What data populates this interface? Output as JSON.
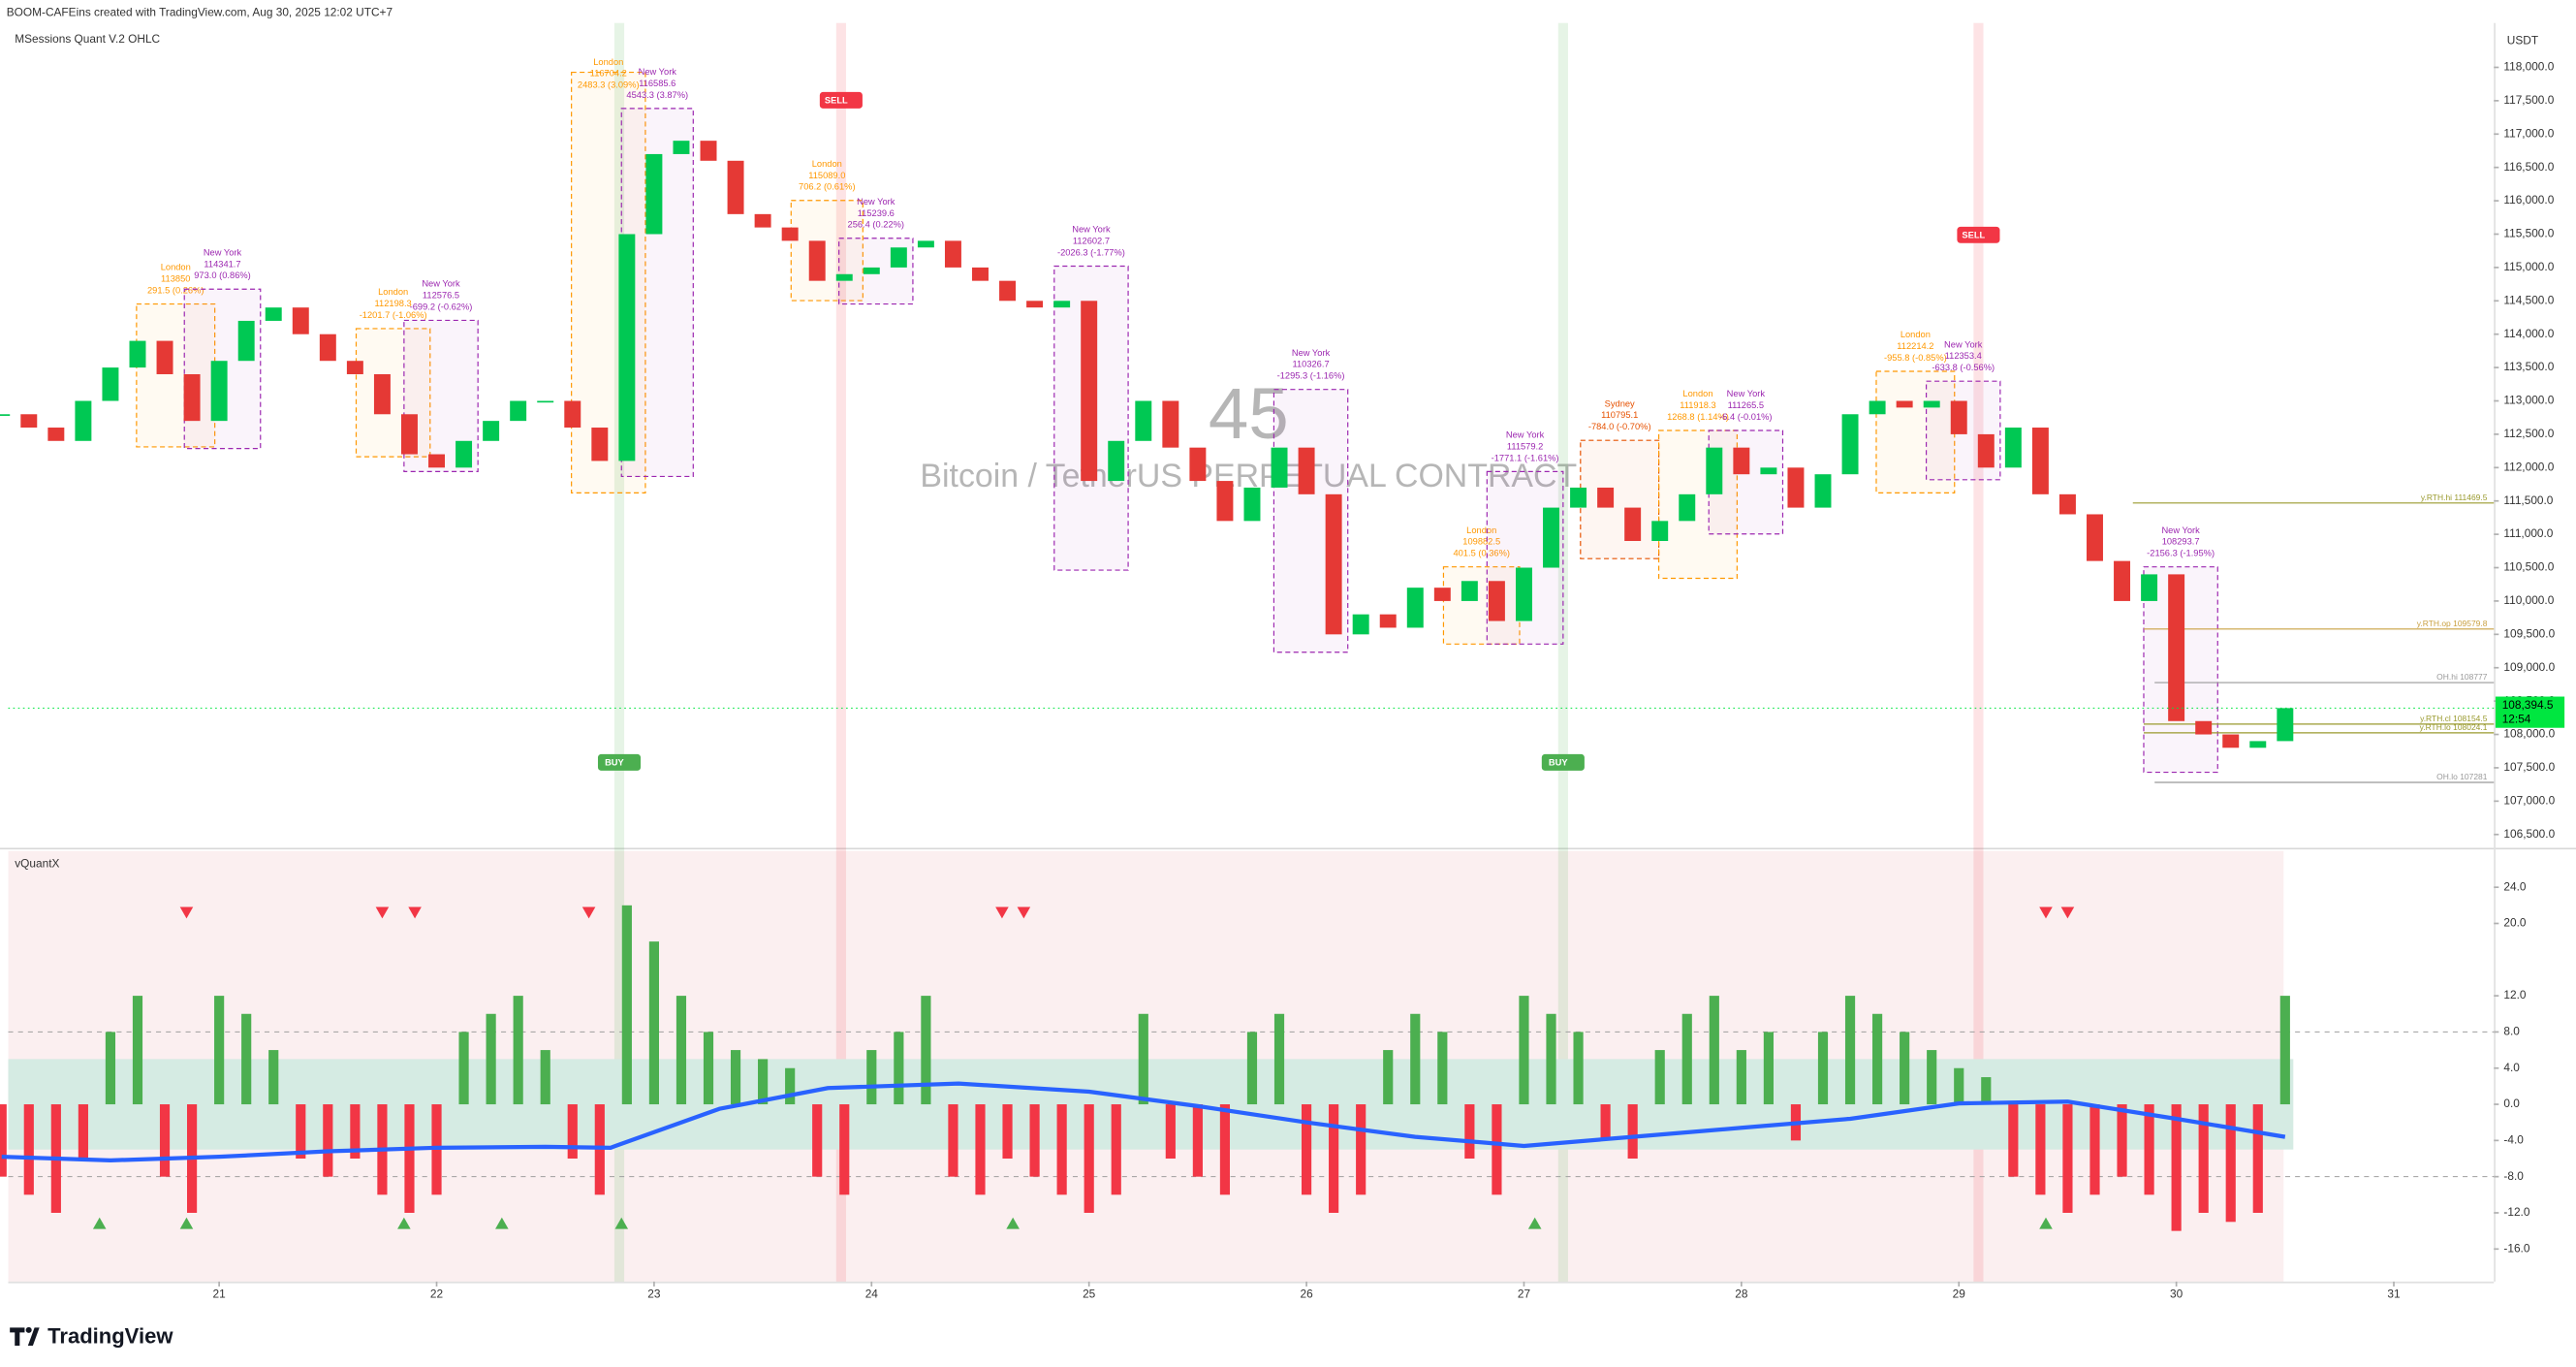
{
  "header": {
    "created": "BOOM-CAFEins created with TradingView.com, Aug 30, 2025 12:02 UTC+7",
    "logo": "TradingView"
  },
  "chart_data": [
    {
      "type": "candlestick",
      "title": "MSessions Quant V.2 OHLC",
      "watermark_number": "45",
      "watermark_symbol": "Bitcoin / TetherUS PERPETUAL CONTRACT",
      "y_axis_label": "USDT",
      "x": [
        20,
        20.125,
        20.25,
        20.375,
        20.5,
        20.625,
        20.75,
        20.875,
        21,
        21.125,
        21.25,
        21.375,
        21.5,
        21.625,
        21.75,
        21.875,
        22,
        22.125,
        22.25,
        22.375,
        22.5,
        22.625,
        22.75,
        22.875,
        23,
        23.125,
        23.25,
        23.375,
        23.5,
        23.625,
        23.75,
        23.875,
        24,
        24.125,
        24.25,
        24.375,
        24.5,
        24.625,
        24.75,
        24.875,
        25,
        25.125,
        25.25,
        25.375,
        25.5,
        25.625,
        25.75,
        25.875,
        26,
        26.125,
        26.25,
        26.375,
        26.5,
        26.625,
        26.75,
        26.875,
        27,
        27.125,
        27.25,
        27.375,
        27.5,
        27.625,
        27.75,
        27.875,
        28,
        28.125,
        28.25,
        28.375,
        28.5,
        28.625,
        28.75,
        28.875,
        29,
        29.125,
        29.25,
        29.375,
        29.5,
        29.625,
        29.75,
        29.875,
        30,
        30.125,
        30.25,
        30.375,
        30.5
      ],
      "close": [
        112800,
        112600,
        112400,
        113000,
        113500,
        113900,
        113400,
        112700,
        113600,
        114200,
        114400,
        114000,
        113600,
        113400,
        112800,
        112200,
        112000,
        112400,
        112700,
        113000,
        113000,
        112600,
        112100,
        115500,
        116700,
        116900,
        116600,
        115800,
        115600,
        115400,
        114800,
        114900,
        115000,
        115300,
        115400,
        115000,
        114800,
        114500,
        114400,
        114500,
        111800,
        112400,
        113000,
        112300,
        111800,
        111200,
        111700,
        112300,
        111600,
        109500,
        109800,
        109600,
        110200,
        110000,
        110300,
        109700,
        110500,
        111400,
        111700,
        111400,
        110900,
        111200,
        111600,
        112300,
        111900,
        112000,
        111400,
        111900,
        112800,
        113000,
        112900,
        113000,
        112500,
        112000,
        112600,
        111600,
        111300,
        110600,
        110000,
        110400,
        108200,
        108000,
        107800,
        107900,
        108394.5
      ],
      "up_color": "#00c853",
      "down_color": "#e53935",
      "xlim": [
        20.03,
        31.46
      ],
      "xticks": [
        21,
        22,
        23,
        24,
        25,
        26,
        27,
        28,
        29,
        30,
        31
      ],
      "ylim": [
        106325,
        118665
      ],
      "yticks": [
        {
          "value": 118000,
          "label": "118,000.0"
        },
        {
          "value": 117500,
          "label": "117,500.0"
        },
        {
          "value": 117000,
          "label": "117,000.0"
        },
        {
          "value": 116500,
          "label": "116,500.0"
        },
        {
          "value": 116000,
          "label": "116,000.0"
        },
        {
          "value": 115500,
          "label": "115,500.0"
        },
        {
          "value": 115000,
          "label": "115,000.0"
        },
        {
          "value": 114500,
          "label": "114,500.0"
        },
        {
          "value": 114000,
          "label": "114,000.0"
        },
        {
          "value": 113500,
          "label": "113,500.0"
        },
        {
          "value": 113000,
          "label": "113,000.0"
        },
        {
          "value": 112500,
          "label": "112,500.0"
        },
        {
          "value": 112000,
          "label": "112,000.0"
        },
        {
          "value": 111500,
          "label": "111,500.0"
        },
        {
          "value": 111000,
          "label": "111,000.0"
        },
        {
          "value": 110500,
          "label": "110,500.0"
        },
        {
          "value": 110000,
          "label": "110,000.0"
        },
        {
          "value": 109500,
          "label": "109,500.0"
        },
        {
          "value": 109000,
          "label": "109,000.0"
        },
        {
          "value": 108500,
          "label": "108,500.0"
        },
        {
          "value": 108000,
          "label": "108,000.0"
        },
        {
          "value": 107500,
          "label": "107,500.0"
        },
        {
          "value": 107000,
          "label": "107,000.0"
        },
        {
          "value": 106500,
          "label": "106,500.0"
        }
      ],
      "last_price": {
        "value": 108394.5,
        "label": "108,394.5"
      },
      "countdown": "12:54",
      "last_price_color": "#00e640",
      "levels": [
        {
          "label": "y.RTH.hi 111469.5",
          "value": 111469.5,
          "x0": 29.8,
          "color": "#9a9a2e"
        },
        {
          "label": "y.RTH.op 109579.8",
          "value": 109579.8,
          "x0": 29.85,
          "color": "#c9a040"
        },
        {
          "label": "OH.hi 108777",
          "value": 108777,
          "x0": 29.9,
          "color": "#999999"
        },
        {
          "label": "y.RTH.cl 108154.5",
          "value": 108154.5,
          "x0": 29.85,
          "color": "#9a9a2e"
        },
        {
          "label": "y.RTH.lo 108024.1",
          "value": 108024.1,
          "x0": 29.85,
          "color": "#9a9a2e"
        },
        {
          "label": "OH.lo 107281",
          "value": 107281,
          "x0": 29.9,
          "color": "#999999"
        }
      ],
      "signals": [
        {
          "label": "SELL",
          "x": 23.86,
          "price": 117507,
          "color": "#f23645"
        },
        {
          "label": "SELL",
          "x": 29.09,
          "price": 115488,
          "color": "#f23645"
        },
        {
          "label": "BUY",
          "x": 22.84,
          "price": 107581,
          "color": "#4caf50"
        },
        {
          "label": "BUY",
          "x": 27.18,
          "price": 107581,
          "color": "#4caf50"
        }
      ],
      "session_colors": {
        "London": "#ff9800",
        "New York": "#9c27b0",
        "Sydney": "#e65100"
      },
      "sessions": [
        {
          "name": "London",
          "price": "113850",
          "change": "291.5 (0.26%)",
          "x0": 20.62,
          "x1": 20.98,
          "hi": 114453,
          "lo": 112311
        },
        {
          "name": "New York",
          "price": "114341.7",
          "change": "973.0 (0.86%)",
          "x0": 20.84,
          "x1": 21.19,
          "hi": 114675,
          "lo": 112286
        },
        {
          "name": "London",
          "price": "112198.3",
          "change": "-1201.7 (-1.06%)",
          "x0": 21.63,
          "x1": 21.97,
          "hi": 114084,
          "lo": 112163
        },
        {
          "name": "New York",
          "price": "112576.5",
          "change": "-699.2 (-0.62%)",
          "x0": 21.85,
          "x1": 22.19,
          "hi": 114207,
          "lo": 111941
        },
        {
          "name": "London",
          "price": "116704.2",
          "change": "2483.3 (3.09%)",
          "x0": 22.62,
          "x1": 22.96,
          "hi": 117926,
          "lo": 111621
        },
        {
          "name": "New York",
          "price": "116585.6",
          "change": "4543.3 (3.87%)",
          "x0": 22.85,
          "x1": 23.18,
          "hi": 117384,
          "lo": 111867
        },
        {
          "name": "London",
          "price": "115089.0",
          "change": "706.2 (0.61%)",
          "x0": 23.63,
          "x1": 23.96,
          "hi": 116005,
          "lo": 114503
        },
        {
          "name": "New York",
          "price": "115239.6",
          "change": "256.4 (0.22%)",
          "x0": 23.85,
          "x1": 24.19,
          "hi": 115438,
          "lo": 114453
        },
        {
          "name": "New York",
          "price": "112602.7",
          "change": "-2026.3 (-1.77%)",
          "x0": 24.84,
          "x1": 25.18,
          "hi": 115020,
          "lo": 110463
        },
        {
          "name": "New York",
          "price": "110326.7",
          "change": "-1295.3 (-1.16%)",
          "x0": 25.85,
          "x1": 26.19,
          "hi": 113172,
          "lo": 109232
        },
        {
          "name": "London",
          "price": "109882.5",
          "change": "401.5 (0.36%)",
          "x0": 26.63,
          "x1": 26.98,
          "hi": 110512,
          "lo": 109355
        },
        {
          "name": "New York",
          "price": "111579.2",
          "change": "-1771.1 (-1.61%)",
          "x0": 26.83,
          "x1": 27.18,
          "hi": 111941,
          "lo": 109355
        },
        {
          "name": "Sydney",
          "price": "110795.1",
          "change": "-784.0 (-0.70%)",
          "x0": 27.26,
          "x1": 27.62,
          "hi": 112409,
          "lo": 110636
        },
        {
          "name": "London",
          "price": "111918.3",
          "change": "1268.8 (1.14%)",
          "x0": 27.62,
          "x1": 27.98,
          "hi": 112557,
          "lo": 110340
        },
        {
          "name": "New York",
          "price": "111265.5",
          "change": "-6.4 (-0.01%)",
          "x0": 27.85,
          "x1": 28.19,
          "hi": 112557,
          "lo": 111005
        },
        {
          "name": "London",
          "price": "112214.2",
          "change": "-955.8 (-0.85%)",
          "x0": 28.62,
          "x1": 28.98,
          "hi": 113443,
          "lo": 111621
        },
        {
          "name": "New York",
          "price": "112353.4",
          "change": "-633.8 (-0.56%)",
          "x0": 28.85,
          "x1": 29.19,
          "hi": 113295,
          "lo": 111818
        },
        {
          "name": "New York",
          "price": "108293.7",
          "change": "-2156.3 (-1.95%)",
          "x0": 29.85,
          "x1": 30.19,
          "hi": 110512,
          "lo": 107433
        }
      ]
    },
    {
      "type": "bar",
      "title": "vQuantX",
      "x": [
        20,
        20.125,
        20.25,
        20.375,
        20.5,
        20.625,
        20.75,
        20.875,
        21,
        21.125,
        21.25,
        21.375,
        21.5,
        21.625,
        21.75,
        21.875,
        22,
        22.125,
        22.25,
        22.375,
        22.5,
        22.625,
        22.75,
        22.875,
        23,
        23.125,
        23.25,
        23.375,
        23.5,
        23.625,
        23.75,
        23.875,
        24,
        24.125,
        24.25,
        24.375,
        24.5,
        24.625,
        24.75,
        24.875,
        25,
        25.125,
        25.25,
        25.375,
        25.5,
        25.625,
        25.75,
        25.875,
        26,
        26.125,
        26.25,
        26.375,
        26.5,
        26.625,
        26.75,
        26.875,
        27,
        27.125,
        27.25,
        27.375,
        27.5,
        27.625,
        27.75,
        27.875,
        28,
        28.125,
        28.25,
        28.375,
        28.5,
        28.625,
        28.75,
        28.875,
        29,
        29.125,
        29.25,
        29.375,
        29.5,
        29.625,
        29.75,
        29.875,
        30,
        30.125,
        30.25,
        30.375,
        30.5
      ],
      "values": [
        -8,
        -10,
        -12,
        -6,
        8,
        12,
        -8,
        -12,
        12,
        10,
        6,
        -6,
        -8,
        -6,
        -10,
        -12,
        -10,
        8,
        10,
        12,
        6,
        -6,
        -10,
        22,
        18,
        12,
        8,
        6,
        5,
        4,
        -8,
        -10,
        6,
        8,
        12,
        -8,
        -10,
        -6,
        -8,
        -10,
        -12,
        -10,
        10,
        -6,
        -8,
        -10,
        8,
        10,
        -10,
        -12,
        -10,
        6,
        10,
        8,
        -6,
        -10,
        12,
        10,
        8,
        -4,
        -6,
        6,
        10,
        12,
        6,
        8,
        -4,
        8,
        12,
        10,
        8,
        6,
        4,
        3,
        -8,
        -10,
        -12,
        -10,
        -8,
        -10,
        -14,
        -12,
        -13,
        -12,
        12
      ],
      "up_color": "#4caf50",
      "down_color": "#f23645",
      "signal": {
        "x": [
          20,
          20.5,
          21,
          21.5,
          22,
          22.5,
          22.8,
          23.3,
          23.8,
          24.4,
          25,
          25.5,
          26,
          26.5,
          27,
          27.5,
          28,
          28.5,
          29,
          29.5,
          30,
          30.5
        ],
        "values": [
          -5.8,
          -6.2,
          -5.8,
          -5.2,
          -4.8,
          -4.7,
          -4.8,
          -0.5,
          1.8,
          2.3,
          1.4,
          -0.2,
          -2,
          -3.6,
          -4.6,
          -3.6,
          -2.6,
          -1.6,
          0.1,
          0.3,
          -1.6,
          -3.6
        ],
        "color": "#2962ff"
      },
      "zone": [
        -5,
        5
      ],
      "zone_color": "#d5ebe3",
      "dashed_levels": [
        8,
        -8
      ],
      "down_markers_x": [
        20.85,
        21.75,
        21.9,
        22.7,
        24.6,
        24.7,
        29.4,
        29.5
      ],
      "up_markers_x": [
        20.45,
        20.85,
        21.85,
        22.3,
        22.85,
        24.65,
        27.05,
        29.4
      ],
      "xlim": [
        20.03,
        31.46
      ],
      "ylim": [
        -19.6,
        28
      ],
      "yticks": [
        {
          "value": 24,
          "label": "24.0"
        },
        {
          "value": 20,
          "label": "20.0"
        },
        {
          "value": 12,
          "label": "12.0"
        },
        {
          "value": 8,
          "label": "8.0"
        },
        {
          "value": 4,
          "label": "4.0"
        },
        {
          "value": 0,
          "label": "0.0"
        },
        {
          "value": -4,
          "label": "-4.0"
        },
        {
          "value": -8,
          "label": "-8.0"
        },
        {
          "value": -12,
          "label": "-12.0"
        },
        {
          "value": -16,
          "label": "-16.0"
        }
      ]
    }
  ]
}
